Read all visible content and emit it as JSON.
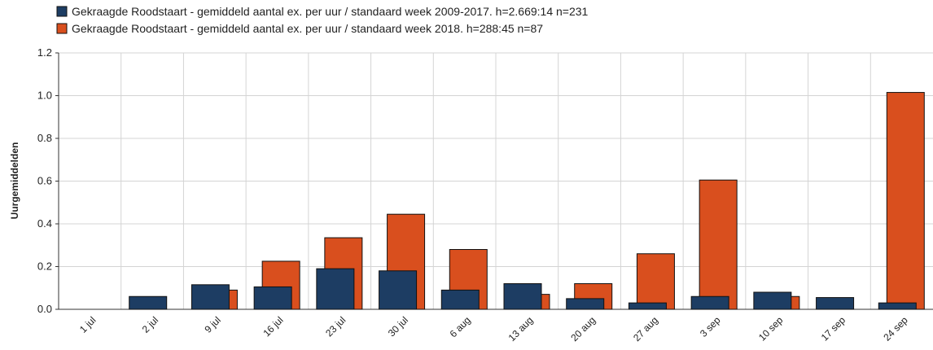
{
  "chart_data": {
    "type": "bar",
    "ylabel": "Uurgemiddelden",
    "categories": [
      "1 jul",
      "2 jul",
      "9 jul",
      "16 jul",
      "23 jul",
      "30 jul",
      "6 aug",
      "13 aug",
      "20 aug",
      "27 aug",
      "3 sep",
      "10 sep",
      "17 sep",
      "24 sep"
    ],
    "series": [
      {
        "name": "Gekraagde Roodstaart - gemiddeld aantal ex. per uur / standaard week 2009-2017. h=2.669:14 n=231",
        "color": "#1d3d63",
        "values": [
          0,
          0.06,
          0.115,
          0.105,
          0.19,
          0.18,
          0.09,
          0.12,
          0.05,
          0.03,
          0.06,
          0.08,
          0.055,
          0.03
        ]
      },
      {
        "name": "Gekraagde Roodstaart - gemiddeld aantal ex. per uur / standaard week 2018. h=288:45 n=87",
        "color": "#d94f1e",
        "values": [
          0,
          0,
          0.09,
          0.225,
          0.335,
          0.445,
          0.28,
          0.07,
          0.12,
          0.26,
          0.605,
          0.06,
          0,
          1.015
        ]
      }
    ],
    "ylim": [
      0,
      1.2
    ],
    "yticks": [
      {
        "value": 0,
        "label": "0.0"
      },
      0.2,
      0.4,
      0.6,
      0.8,
      {
        "value": 1,
        "label": "1.0"
      },
      1.2
    ],
    "grid": true
  }
}
